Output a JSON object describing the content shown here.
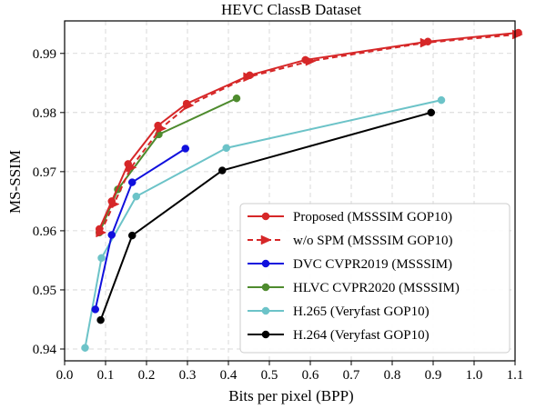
{
  "chart_data": {
    "type": "line",
    "title": "HEVC ClassB Dataset",
    "xlabel": "Bits per pixel (BPP)",
    "ylabel": "MS-SSIM",
    "xlim": [
      0.0,
      1.1
    ],
    "ylim": [
      0.938,
      0.9955
    ],
    "xticks": [
      0.0,
      0.1,
      0.2,
      0.3,
      0.4,
      0.5,
      0.6,
      0.7,
      0.8,
      0.9,
      1.0,
      1.1
    ],
    "xtick_labels": [
      "0.0",
      "0.1",
      "0.2",
      "0.3",
      "0.4",
      "0.5",
      "0.6",
      "0.7",
      "0.8",
      "0.9",
      "1.0",
      "1.1"
    ],
    "yticks": [
      0.94,
      0.95,
      0.96,
      0.97,
      0.98,
      0.99
    ],
    "ytick_labels": [
      "0.94",
      "0.95",
      "0.96",
      "0.97",
      "0.98",
      "0.99"
    ],
    "grid": true,
    "legend_position": "lower-right",
    "series": [
      {
        "name": "Proposed (MSSSIM GOP10)",
        "color": "#d62728",
        "marker": "circle",
        "line_style": "solid",
        "x": [
          0.085,
          0.115,
          0.155,
          0.228,
          0.298,
          0.452,
          0.588,
          0.887,
          1.108
        ],
        "y": [
          0.9603,
          0.965,
          0.9713,
          0.9778,
          0.9815,
          0.9863,
          0.9889,
          0.992,
          0.9935
        ]
      },
      {
        "name": "w/o SPM (MSSSIM GOP10)",
        "color": "#d62728",
        "marker": "triangle-right",
        "line_style": "dashed",
        "x": [
          0.088,
          0.12,
          0.162,
          0.235,
          0.302,
          0.448,
          0.6,
          0.88,
          1.105
        ],
        "y": [
          0.9597,
          0.9645,
          0.9707,
          0.9773,
          0.9812,
          0.986,
          0.9887,
          0.9918,
          0.9932
        ]
      },
      {
        "name": "DVC CVPR2019 (MSSSIM)",
        "color": "#1010dd",
        "marker": "circle",
        "line_style": "solid",
        "x": [
          0.075,
          0.115,
          0.165,
          0.295
        ],
        "y": [
          0.9467,
          0.9593,
          0.9682,
          0.9739
        ]
      },
      {
        "name": "HLVC CVPR2020 (MSSSIM)",
        "color": "#4e8b2e",
        "marker": "circle",
        "line_style": "solid",
        "x": [
          0.085,
          0.13,
          0.23,
          0.42
        ],
        "y": [
          0.9597,
          0.967,
          0.9763,
          0.9824
        ]
      },
      {
        "name": "H.265 (Veryfast GOP10)",
        "color": "#6cc3c8",
        "marker": "circle",
        "line_style": "solid",
        "x": [
          0.05,
          0.09,
          0.175,
          0.395,
          0.92
        ],
        "y": [
          0.9402,
          0.9554,
          0.9658,
          0.974,
          0.9821
        ]
      },
      {
        "name": "H.264 (Veryfast GOP10)",
        "color": "#000000",
        "marker": "circle",
        "line_style": "solid",
        "x": [
          0.088,
          0.165,
          0.385,
          0.895
        ],
        "y": [
          0.9449,
          0.9592,
          0.9702,
          0.98
        ]
      }
    ]
  }
}
